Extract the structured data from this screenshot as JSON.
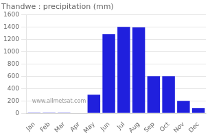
{
  "chart_data": {
    "type": "bar",
    "title": "Thandwe : precipitation (mm)",
    "categories": [
      "Jan",
      "Feb",
      "Mar",
      "Apr",
      "May",
      "Jun",
      "Jul",
      "Aug",
      "Sep",
      "Oct",
      "Nov",
      "Dec"
    ],
    "values": [
      2,
      2,
      2,
      5,
      300,
      1280,
      1400,
      1390,
      600,
      600,
      200,
      80
    ],
    "color": "#2020dd",
    "ylim": [
      0,
      1600
    ],
    "yticks": [
      0,
      200,
      400,
      600,
      800,
      1000,
      1200,
      1400,
      1600
    ],
    "grid": true,
    "annotation": "www.allmetsat.com"
  }
}
